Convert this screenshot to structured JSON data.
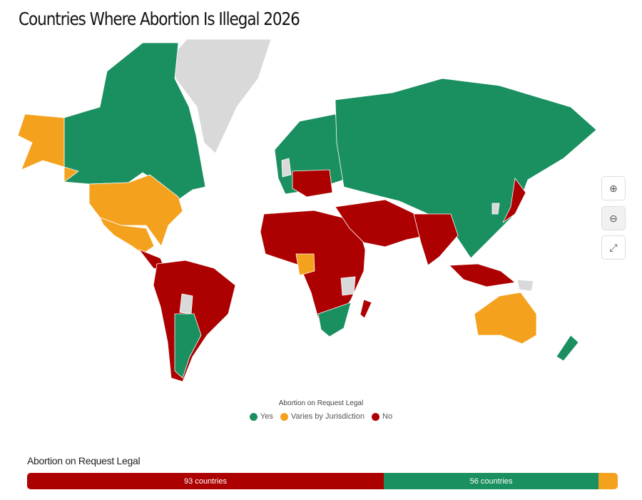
{
  "title": "Countries Where Abortion Is Illegal 2026",
  "colors": {
    "yes": "#1a8f5f",
    "varies": "#f4a11d",
    "no": "#ad0000",
    "no_data": "#d9d9d9"
  },
  "map_controls": [
    {
      "name": "zoom-in",
      "icon": "magnifier-plus-icon",
      "glyph": "⊕"
    },
    {
      "name": "zoom-out",
      "icon": "magnifier-minus-icon",
      "glyph": "⊖"
    },
    {
      "name": "fullscreen",
      "icon": "expand-icon",
      "glyph": "⤢"
    }
  ],
  "legend": {
    "title": "Abortion on Request Legal",
    "items": [
      {
        "label": "Yes",
        "color": "#1a8f5f"
      },
      {
        "label": "Varies by Jurisdiction",
        "color": "#f4a11d"
      },
      {
        "label": "No",
        "color": "#ad0000"
      }
    ]
  },
  "summary_bar": {
    "title": "Abortion on Request Legal",
    "segments": [
      {
        "key": "no",
        "count": 93,
        "label": "93 countries",
        "color": "#ad0000"
      },
      {
        "key": "yes",
        "count": 56,
        "label": "56 countries",
        "color": "#1a8f5f"
      },
      {
        "key": "varies",
        "count": 5,
        "label": "",
        "color": "#f4a11d"
      }
    ]
  }
}
